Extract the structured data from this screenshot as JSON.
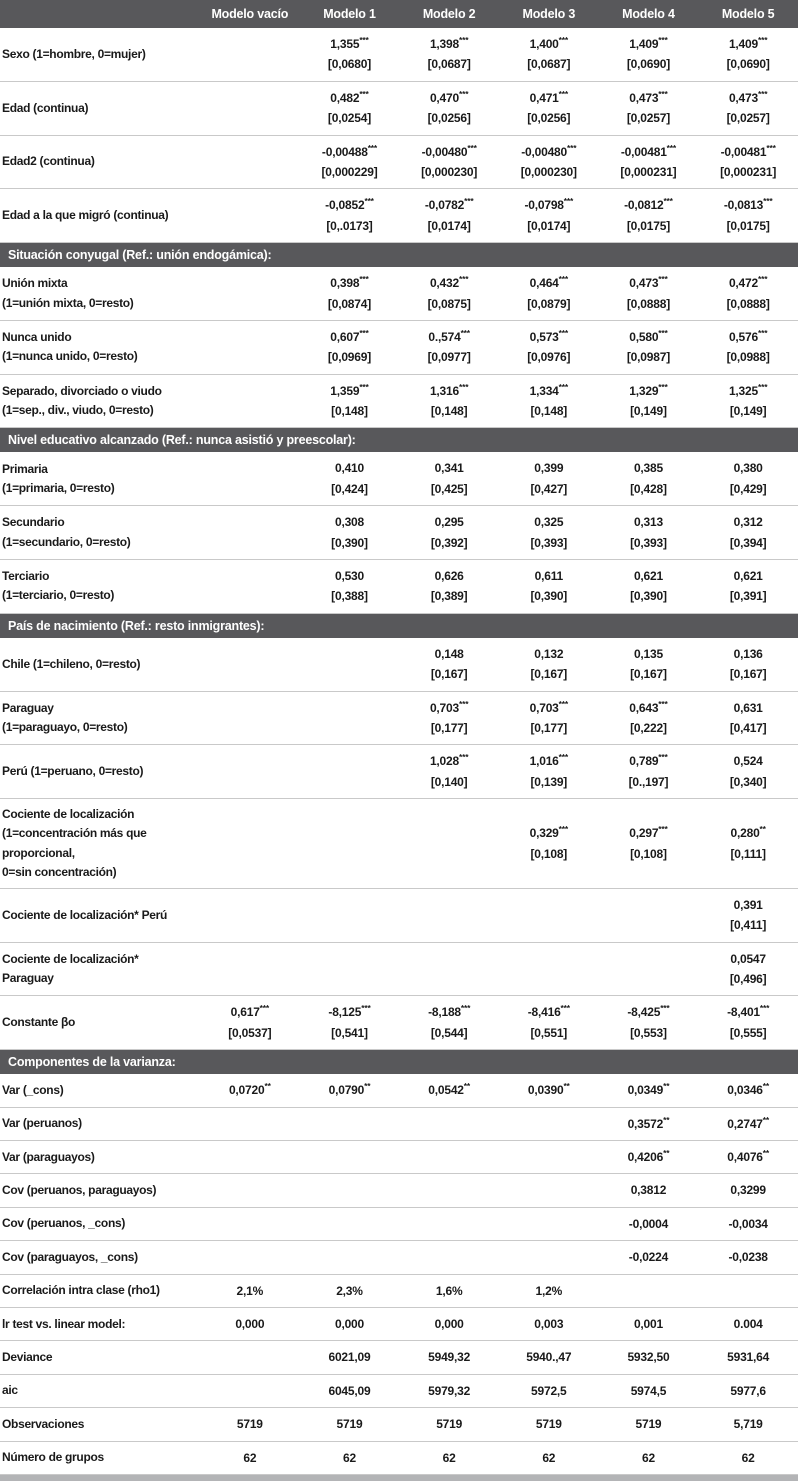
{
  "colors": {
    "header_bg": "#58585b",
    "section_bg": "#58585b",
    "header_text": "#ffffff",
    "body_text": "#1a1a1a",
    "row_border": "#c9c9c9",
    "bottom_bar": "#b3b4b6"
  },
  "table": {
    "column_headers": [
      "Modelo vacío",
      "Modelo 1",
      "Modelo 2",
      "Modelo 3",
      "Modelo 4",
      "Modelo 5"
    ],
    "rows": [
      {
        "type": "data",
        "label_lines": [
          "Sexo (1=hombre, 0=mujer)"
        ],
        "cells": [
          [],
          [
            "1,355***",
            "[0,0680]"
          ],
          [
            "1,398***",
            "[0,0687]"
          ],
          [
            "1,400***",
            "[0,0687]"
          ],
          [
            "1,409***",
            "[0,0690]"
          ],
          [
            "1,409***",
            "[0,0690]"
          ]
        ]
      },
      {
        "type": "data",
        "label_lines": [
          "Edad (continua)"
        ],
        "cells": [
          [],
          [
            "0,482***",
            "[0,0254]"
          ],
          [
            "0,470***",
            "[0,0256]"
          ],
          [
            "0,471***",
            "[0,0256]"
          ],
          [
            "0,473***",
            "[0,0257]"
          ],
          [
            "0,473***",
            "[0,0257]"
          ]
        ]
      },
      {
        "type": "data",
        "label_lines": [
          "Edad2 (continua)"
        ],
        "cells": [
          [],
          [
            "-0,00488***",
            "[0,000229]"
          ],
          [
            "-0,00480***",
            "[0,000230]"
          ],
          [
            "-0,00480***",
            "[0,000230]"
          ],
          [
            "-0,00481***",
            "[0,000231]"
          ],
          [
            "-0,00481***",
            "[0,000231]"
          ]
        ]
      },
      {
        "type": "data",
        "label_lines": [
          "Edad a la que migró (continua)"
        ],
        "cells": [
          [],
          [
            "-0,0852***",
            "[0,.0173]"
          ],
          [
            "-0,0782***",
            "[0,0174]"
          ],
          [
            "-0,0798***",
            "[0,0174]"
          ],
          [
            "-0,0812***",
            "[0,0175]"
          ],
          [
            "-0,0813***",
            "[0,0175]"
          ]
        ]
      },
      {
        "type": "section",
        "label": "Situación conyugal (Ref.: unión endogámica):"
      },
      {
        "type": "data",
        "label_lines": [
          "Unión mixta",
          "(1=unión mixta, 0=resto)"
        ],
        "cells": [
          [],
          [
            "0,398***",
            "[0,0874]"
          ],
          [
            "0,432***",
            "[0,0875]"
          ],
          [
            "0,464***",
            "[0,0879]"
          ],
          [
            "0,473***",
            "[0,0888]"
          ],
          [
            "0,472***",
            "[0,0888]"
          ]
        ]
      },
      {
        "type": "data",
        "label_lines": [
          "Nunca unido",
          "(1=nunca unido, 0=resto)"
        ],
        "cells": [
          [],
          [
            "0,607***",
            "[0,0969]"
          ],
          [
            "0.,574***",
            "[0,0977]"
          ],
          [
            "0,573***",
            "[0,0976]"
          ],
          [
            "0,580***",
            "[0,0987]"
          ],
          [
            "0,576***",
            "[0,0988]"
          ]
        ]
      },
      {
        "type": "data",
        "label_lines": [
          "Separado, divorciado o viudo",
          "(1=sep., div., viudo, 0=resto)"
        ],
        "cells": [
          [],
          [
            "1,359***",
            "[0,148]"
          ],
          [
            "1,316***",
            "[0,148]"
          ],
          [
            "1,334***",
            "[0,148]"
          ],
          [
            "1,329***",
            "[0,149]"
          ],
          [
            "1,325***",
            "[0,149]"
          ]
        ]
      },
      {
        "type": "section",
        "label": "Nivel educativo alcanzado (Ref.: nunca asistió y preescolar):"
      },
      {
        "type": "data",
        "label_lines": [
          "Primaria",
          "(1=primaria, 0=resto)"
        ],
        "cells": [
          [],
          [
            "0,410",
            "[0,424]"
          ],
          [
            "0,341",
            "[0,425]"
          ],
          [
            "0,399",
            "[0,427]"
          ],
          [
            "0,385",
            "[0,428]"
          ],
          [
            "0,380",
            "[0,429]"
          ]
        ]
      },
      {
        "type": "data",
        "label_lines": [
          "Secundario",
          "(1=secundario, 0=resto)"
        ],
        "cells": [
          [],
          [
            "0,308",
            "[0,390]"
          ],
          [
            "0,295",
            "[0,392]"
          ],
          [
            "0,325",
            "[0,393]"
          ],
          [
            "0,313",
            "[0,393]"
          ],
          [
            "0,312",
            "[0,394]"
          ]
        ]
      },
      {
        "type": "data",
        "label_lines": [
          "Terciario",
          "(1=terciario, 0=resto)"
        ],
        "cells": [
          [],
          [
            "0,530",
            "[0,388]"
          ],
          [
            "0,626",
            "[0,389]"
          ],
          [
            "0,611",
            "[0,390]"
          ],
          [
            "0,621",
            "[0,390]"
          ],
          [
            "0,621",
            "[0,391]"
          ]
        ]
      },
      {
        "type": "section",
        "label": "País de nacimiento (Ref.: resto inmigrantes):"
      },
      {
        "type": "data",
        "label_lines": [
          "Chile (1=chileno, 0=resto)"
        ],
        "cells": [
          [],
          [],
          [
            "0,148",
            "[0,167]"
          ],
          [
            "0,132",
            "[0,167]"
          ],
          [
            "0,135",
            "[0,167]"
          ],
          [
            "0,136",
            "[0,167]"
          ]
        ]
      },
      {
        "type": "data",
        "label_lines": [
          "Paraguay",
          "(1=paraguayo, 0=resto)"
        ],
        "cells": [
          [],
          [],
          [
            "0,703***",
            "[0,177]"
          ],
          [
            "0,703***",
            "[0,177]"
          ],
          [
            "0,643***",
            "[0,222]"
          ],
          [
            "0,631",
            "[0,417]"
          ]
        ]
      },
      {
        "type": "data",
        "label_lines": [
          "Perú (1=peruano, 0=resto)"
        ],
        "cells": [
          [],
          [],
          [
            "1,028***",
            "[0,140]"
          ],
          [
            "1,016***",
            "[0,139]"
          ],
          [
            "0,789***",
            "[0.,197]"
          ],
          [
            "0,524",
            "[0,340]"
          ]
        ]
      },
      {
        "type": "data",
        "label_lines": [
          "Cociente de localización",
          "(1=concentración más que",
          "proporcional,",
          "0=sin concentración)"
        ],
        "cells": [
          [],
          [],
          [],
          [
            "0,329***",
            "[0,108]"
          ],
          [
            "0,297***",
            "[0,108]"
          ],
          [
            "0,280**",
            "[0,111]"
          ]
        ]
      },
      {
        "type": "data",
        "label_lines": [
          "Cociente de localización* Perú"
        ],
        "cells": [
          [],
          [],
          [],
          [],
          [],
          [
            "0,391",
            "[0,411]"
          ]
        ]
      },
      {
        "type": "data",
        "label_lines": [
          "Cociente de localización*",
          "Paraguay"
        ],
        "cells": [
          [],
          [],
          [],
          [],
          [],
          [
            "0,0547",
            "[0,496]"
          ]
        ]
      },
      {
        "type": "data",
        "label_lines": [
          "Constante βo"
        ],
        "cells": [
          [
            "0,617***",
            "[0,0537]"
          ],
          [
            "-8,125***",
            "[0,541]"
          ],
          [
            "-8,188***",
            "[0,544]"
          ],
          [
            "-8,416***",
            "[0,551]"
          ],
          [
            "-8,425***",
            "[0,553]"
          ],
          [
            "-8,401***",
            "[0,555]"
          ]
        ]
      },
      {
        "type": "section",
        "label": "Componentes de la varianza:"
      },
      {
        "type": "data",
        "label_lines": [
          "Var (_cons)"
        ],
        "cells": [
          [
            "0,0720**"
          ],
          [
            "0,0790**"
          ],
          [
            "0,0542**"
          ],
          [
            "0,0390**"
          ],
          [
            "0,0349**"
          ],
          [
            "0,0346**"
          ]
        ]
      },
      {
        "type": "data",
        "label_lines": [
          "Var (peruanos)"
        ],
        "cells": [
          [],
          [],
          [],
          [],
          [
            "0,3572**"
          ],
          [
            "0,2747**"
          ]
        ]
      },
      {
        "type": "data",
        "label_lines": [
          "Var (paraguayos)"
        ],
        "cells": [
          [],
          [],
          [],
          [],
          [
            "0,4206**"
          ],
          [
            "0,4076**"
          ]
        ]
      },
      {
        "type": "data",
        "label_lines": [
          "Cov (peruanos, paraguayos)"
        ],
        "cells": [
          [],
          [],
          [],
          [],
          [
            "0,3812"
          ],
          [
            "0,3299"
          ]
        ]
      },
      {
        "type": "data",
        "label_lines": [
          "Cov (peruanos, _cons)"
        ],
        "cells": [
          [],
          [],
          [],
          [],
          [
            "-0,0004"
          ],
          [
            "-0,0034"
          ]
        ]
      },
      {
        "type": "data",
        "label_lines": [
          "Cov (paraguayos, _cons)"
        ],
        "cells": [
          [],
          [],
          [],
          [],
          [
            "-0,0224"
          ],
          [
            "-0,0238"
          ]
        ]
      },
      {
        "type": "data",
        "label_lines": [
          "Correlación intra clase (rho1)"
        ],
        "cells": [
          [
            "2,1%"
          ],
          [
            "2,3%"
          ],
          [
            "1,6%"
          ],
          [
            "1,2%"
          ],
          [],
          []
        ]
      },
      {
        "type": "data",
        "label_lines": [
          "lr test vs. linear model:"
        ],
        "cells": [
          [
            "0,000"
          ],
          [
            "0,000"
          ],
          [
            "0,000"
          ],
          [
            "0,003"
          ],
          [
            "0,001"
          ],
          [
            "0.004"
          ]
        ]
      },
      {
        "type": "data",
        "label_lines": [
          "Deviance"
        ],
        "cells": [
          [],
          [
            "6021,09"
          ],
          [
            "5949,32"
          ],
          [
            "5940.,47"
          ],
          [
            "5932,50"
          ],
          [
            "5931,64"
          ]
        ]
      },
      {
        "type": "data",
        "label_lines": [
          "aic"
        ],
        "cells": [
          [],
          [
            "6045,09"
          ],
          [
            "5979,32"
          ],
          [
            "5972,5"
          ],
          [
            "5974,5"
          ],
          [
            "5977,6"
          ]
        ]
      },
      {
        "type": "data",
        "label_lines": [
          "Observaciones"
        ],
        "cells": [
          [
            "5719"
          ],
          [
            "5719"
          ],
          [
            "5719"
          ],
          [
            "5719"
          ],
          [
            "5719"
          ],
          [
            "5,719"
          ]
        ]
      },
      {
        "type": "data",
        "label_lines": [
          "Número de grupos"
        ],
        "cells": [
          [
            "62"
          ],
          [
            "62"
          ],
          [
            "62"
          ],
          [
            "62"
          ],
          [
            "62"
          ],
          [
            "62"
          ]
        ]
      }
    ]
  }
}
